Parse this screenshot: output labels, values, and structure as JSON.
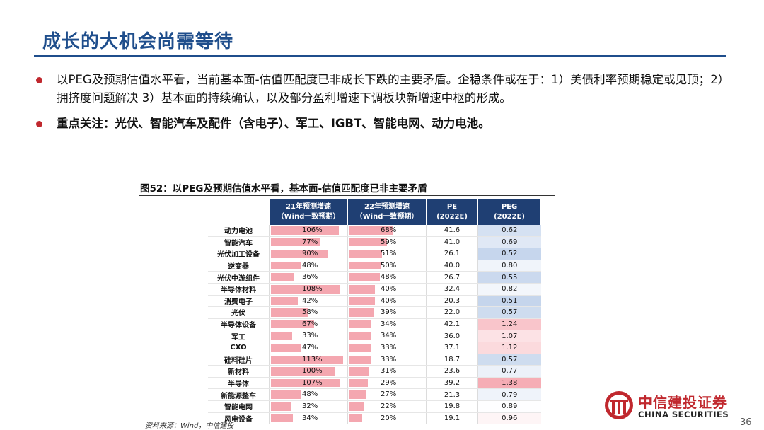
{
  "title": "成长的大机会尚需等待",
  "bullets": [
    "以PEG及预期估值水平看，当前基本面-估值匹配度已非成长下跌的主要矛盾。企稳条件或在于：1）美债利率预期稳定或见顶；2）拥挤度问题解决 3）基本面的持续确认，以及部分盈利增速下调板块新增速中枢的形成。",
    "重点关注：光伏、智能汽车及配件（含电子）、军工、IGBT、智能电网、动力电池。"
  ],
  "figure": {
    "title": "图52：以PEG及预期估值水平看，基本面-估值匹配度已非主要矛盾",
    "headers": {
      "col1_line1": "21年预测增速",
      "col1_line2": "（Wind一致预期）",
      "col2_line1": "22年预测增速",
      "col2_line2": "（Wind一致预期）",
      "col3_line1": "PE",
      "col3_line2": "(2022E)",
      "col4_line1": "PEG",
      "col4_line2": "(2022E)"
    },
    "rows": [
      {
        "name": "动力电池",
        "g21": "106%",
        "g21v": 106,
        "g22": "68%",
        "g22v": 68,
        "pe": "41.6",
        "peg": "0.62",
        "pegv": 0.62
      },
      {
        "name": "智能汽车",
        "g21": "77%",
        "g21v": 77,
        "g22": "59%",
        "g22v": 59,
        "pe": "41.0",
        "peg": "0.69",
        "pegv": 0.69
      },
      {
        "name": "光伏加工设备",
        "g21": "90%",
        "g21v": 90,
        "g22": "51%",
        "g22v": 51,
        "pe": "26.1",
        "peg": "0.52",
        "pegv": 0.52
      },
      {
        "name": "逆变器",
        "g21": "48%",
        "g21v": 48,
        "g22": "50%",
        "g22v": 50,
        "pe": "40.0",
        "peg": "0.80",
        "pegv": 0.8
      },
      {
        "name": "光伏中游组件",
        "g21": "36%",
        "g21v": 36,
        "g22": "48%",
        "g22v": 48,
        "pe": "26.7",
        "peg": "0.55",
        "pegv": 0.55
      },
      {
        "name": "半导体材料",
        "g21": "108%",
        "g21v": 108,
        "g22": "40%",
        "g22v": 40,
        "pe": "32.4",
        "peg": "0.82",
        "pegv": 0.82
      },
      {
        "name": "消费电子",
        "g21": "42%",
        "g21v": 42,
        "g22": "40%",
        "g22v": 40,
        "pe": "20.3",
        "peg": "0.51",
        "pegv": 0.51
      },
      {
        "name": "光伏",
        "g21": "58%",
        "g21v": 58,
        "g22": "39%",
        "g22v": 39,
        "pe": "22.0",
        "peg": "0.57",
        "pegv": 0.57
      },
      {
        "name": "半导体设备",
        "g21": "67%",
        "g21v": 67,
        "g22": "34%",
        "g22v": 34,
        "pe": "42.1",
        "peg": "1.24",
        "pegv": 1.24
      },
      {
        "name": "军工",
        "g21": "33%",
        "g21v": 33,
        "g22": "34%",
        "g22v": 34,
        "pe": "36.0",
        "peg": "1.07",
        "pegv": 1.07
      },
      {
        "name": "CXO",
        "g21": "47%",
        "g21v": 47,
        "g22": "33%",
        "g22v": 33,
        "pe": "37.1",
        "peg": "1.12",
        "pegv": 1.12
      },
      {
        "name": "硅料硅片",
        "g21": "113%",
        "g21v": 113,
        "g22": "33%",
        "g22v": 33,
        "pe": "18.7",
        "peg": "0.57",
        "pegv": 0.57
      },
      {
        "name": "新材料",
        "g21": "100%",
        "g21v": 100,
        "g22": "31%",
        "g22v": 31,
        "pe": "23.6",
        "peg": "0.77",
        "pegv": 0.77
      },
      {
        "name": "半导体",
        "g21": "107%",
        "g21v": 107,
        "g22": "29%",
        "g22v": 29,
        "pe": "39.2",
        "peg": "1.38",
        "pegv": 1.38
      },
      {
        "name": "新能源整车",
        "g21": "48%",
        "g21v": 48,
        "g22": "27%",
        "g22v": 27,
        "pe": "21.3",
        "peg": "0.79",
        "pegv": 0.79
      },
      {
        "name": "智能电网",
        "g21": "32%",
        "g21v": 32,
        "g22": "22%",
        "g22v": 22,
        "pe": "19.8",
        "peg": "0.89",
        "pegv": 0.89
      },
      {
        "name": "风电设备",
        "g21": "34%",
        "g21v": 34,
        "g22": "20%",
        "g22v": 20,
        "pe": "19.1",
        "peg": "0.96",
        "pegv": 0.96
      }
    ]
  },
  "source": "资料来源：Wind，中信建投",
  "logo": {
    "cn": "中信建投证券",
    "en": "CHINA SECURITIES",
    "icon": "citic-logo-icon"
  },
  "page_number": "36",
  "colors": {
    "accent": "#1f4e8c",
    "bullet": "#c0282e",
    "bar": "#f4a7b0",
    "header": "#1f3f73"
  }
}
